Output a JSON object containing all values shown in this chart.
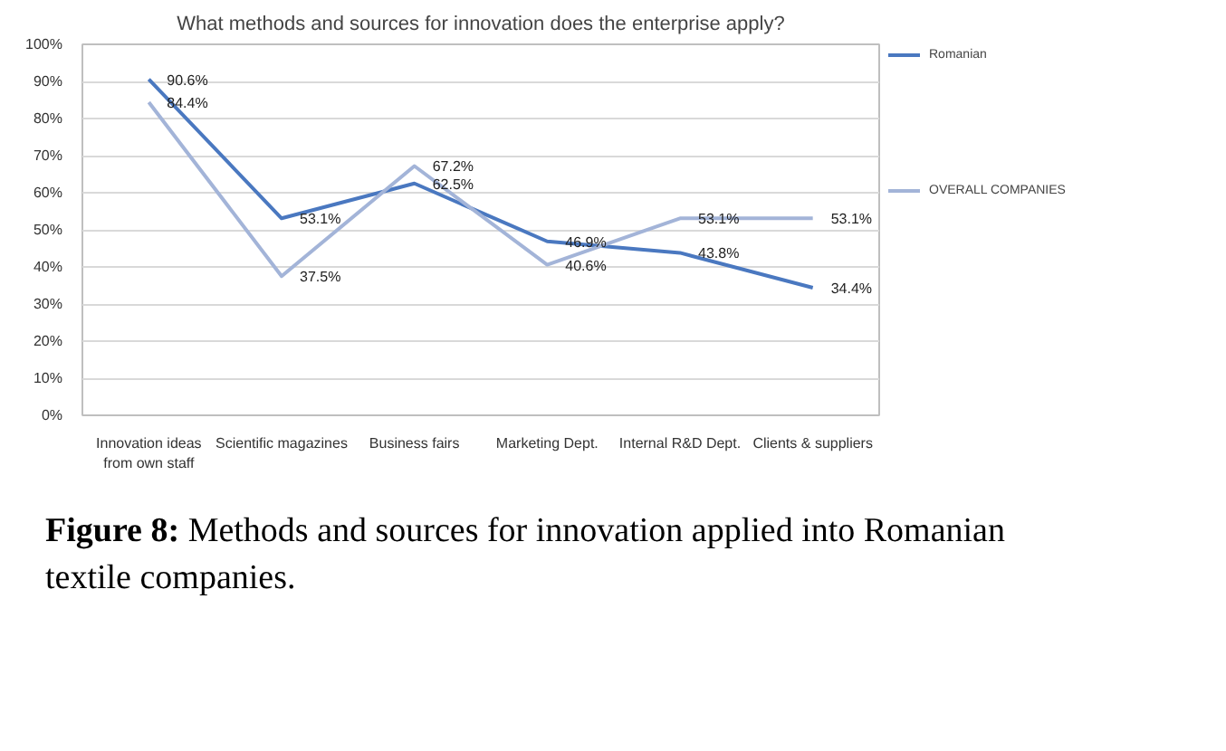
{
  "chart_data": {
    "type": "line",
    "title": "What methods and sources for innovation does the enterprise apply?",
    "categories": [
      "Innovation ideas from own staff",
      "Scientific magazines",
      "Business fairs",
      "Marketing Dept.",
      "Internal R&D Dept.",
      "Clients & suppliers"
    ],
    "series": [
      {
        "name": "Romanian",
        "color": "#4a78c0",
        "values": [
          90.6,
          53.1,
          62.5,
          46.9,
          43.8,
          34.4
        ],
        "value_labels": [
          "90.6%",
          "53.1%",
          "62.5%",
          "46.9%",
          "43.8%",
          "34.4%"
        ]
      },
      {
        "name": "OVERALL COMPANIES",
        "color": "#a3b4d8",
        "values": [
          84.4,
          37.5,
          67.2,
          40.6,
          53.1,
          53.1
        ],
        "value_labels": [
          "84.4%",
          "37.5%",
          "67.2%",
          "40.6%",
          "53.1%",
          "53.1%"
        ]
      }
    ],
    "ylim": [
      0,
      100
    ],
    "yticks": [
      {
        "value": 0,
        "label": "0%"
      },
      {
        "value": 10,
        "label": "10%"
      },
      {
        "value": 20,
        "label": "20%"
      },
      {
        "value": 30,
        "label": "30%"
      },
      {
        "value": 40,
        "label": "40%"
      },
      {
        "value": 50,
        "label": "50%"
      },
      {
        "value": 60,
        "label": "60%"
      },
      {
        "value": 70,
        "label": "70%"
      },
      {
        "value": 80,
        "label": "80%"
      },
      {
        "value": 90,
        "label": "90%"
      },
      {
        "value": 100,
        "label": "100%"
      }
    ],
    "grid": "y",
    "legend": "right",
    "marker": "none",
    "line_style": "solid",
    "annotations": [
      "Figure 8: Methods and sources for innovation applied into Romanian textile companies."
    ]
  }
}
